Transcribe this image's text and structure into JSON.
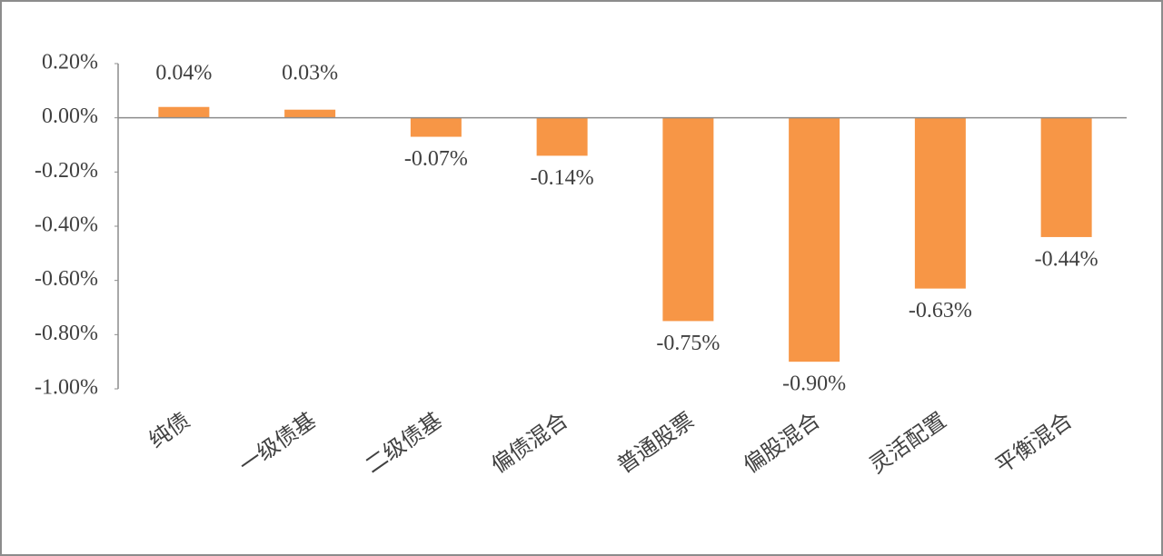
{
  "chart_data": {
    "type": "bar",
    "categories": [
      "纯债",
      "一级债基",
      "二级债基",
      "偏债混合",
      "普通股票",
      "偏股混合",
      "灵活配置",
      "平衡混合"
    ],
    "values": [
      0.04,
      0.03,
      -0.07,
      -0.14,
      -0.75,
      -0.9,
      -0.63,
      -0.44
    ],
    "value_labels": [
      "0.04%",
      "0.03%",
      "-0.07%",
      "-0.14%",
      "-0.75%",
      "-0.90%",
      "-0.63%",
      "-0.44%"
    ],
    "color": "#f79646",
    "ylim": [
      -1.0,
      0.2
    ],
    "yticks": [
      {
        "value": 0.2,
        "label": "0.20%"
      },
      {
        "value": 0.0,
        "label": "0.00%"
      },
      {
        "value": -0.2,
        "label": "-0.20%"
      },
      {
        "value": -0.4,
        "label": "-0.40%"
      },
      {
        "value": -0.6,
        "label": "-0.60%"
      },
      {
        "value": -0.8,
        "label": "-0.80%"
      },
      {
        "value": -1.0,
        "label": "-1.00%"
      }
    ],
    "grid": false
  }
}
